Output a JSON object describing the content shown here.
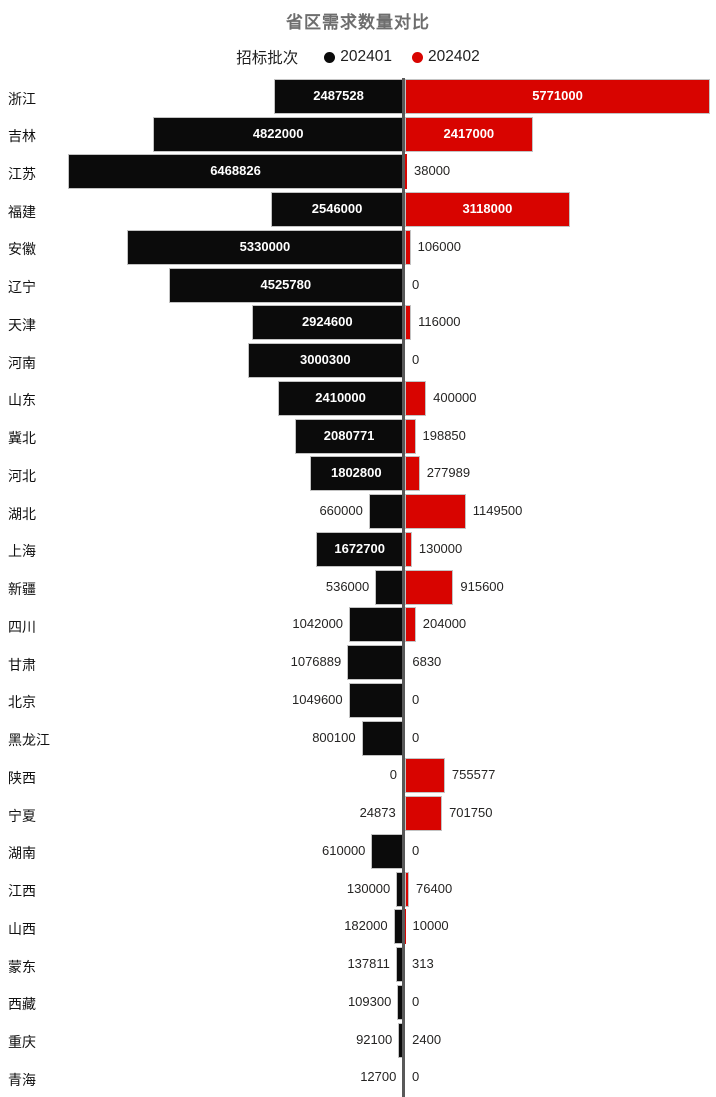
{
  "chart_data": {
    "type": "bar",
    "variant": "diverging-tornado-horizontal",
    "title": "省区需求数量对比",
    "legend_title": "招标批次",
    "legend_position": "top-center",
    "grid": false,
    "value_labels": true,
    "categories": [
      "浙江",
      "吉林",
      "江苏",
      "福建",
      "安徽",
      "辽宁",
      "天津",
      "河南",
      "山东",
      "冀北",
      "河北",
      "湖北",
      "上海",
      "新疆",
      "四川",
      "甘肃",
      "北京",
      "黑龙江",
      "陕西",
      "宁夏",
      "湖南",
      "江西",
      "山西",
      "蒙东",
      "西藏",
      "重庆",
      "青海"
    ],
    "series": [
      {
        "name": "202401",
        "side": "left",
        "color": "#0b0b0b",
        "values": [
          2487528,
          4822000,
          6468826,
          2546000,
          5330000,
          4525780,
          2924600,
          3000300,
          2410000,
          2080771,
          1802800,
          660000,
          1672700,
          536000,
          1042000,
          1076889,
          1049600,
          800100,
          0,
          24873,
          610000,
          130000,
          182000,
          137811,
          109300,
          92100,
          12700
        ]
      },
      {
        "name": "202402",
        "side": "right",
        "color": "#d80400",
        "values": [
          5771000,
          2417000,
          38000,
          3118000,
          106000,
          0,
          116000,
          0,
          400000,
          198850,
          277989,
          1149500,
          130000,
          915600,
          204000,
          6830,
          0,
          0,
          755577,
          701750,
          0,
          76400,
          10000,
          313,
          0,
          2400,
          0
        ]
      }
    ],
    "axis": {
      "center_value": 0,
      "left_max": 6468826,
      "right_max": 5771000
    },
    "colors": {
      "title": "#6e6e6e",
      "axis_line": "#595959",
      "label_inside": "#ffffff",
      "label_outside": "#252423",
      "category_label": "#111111"
    }
  }
}
